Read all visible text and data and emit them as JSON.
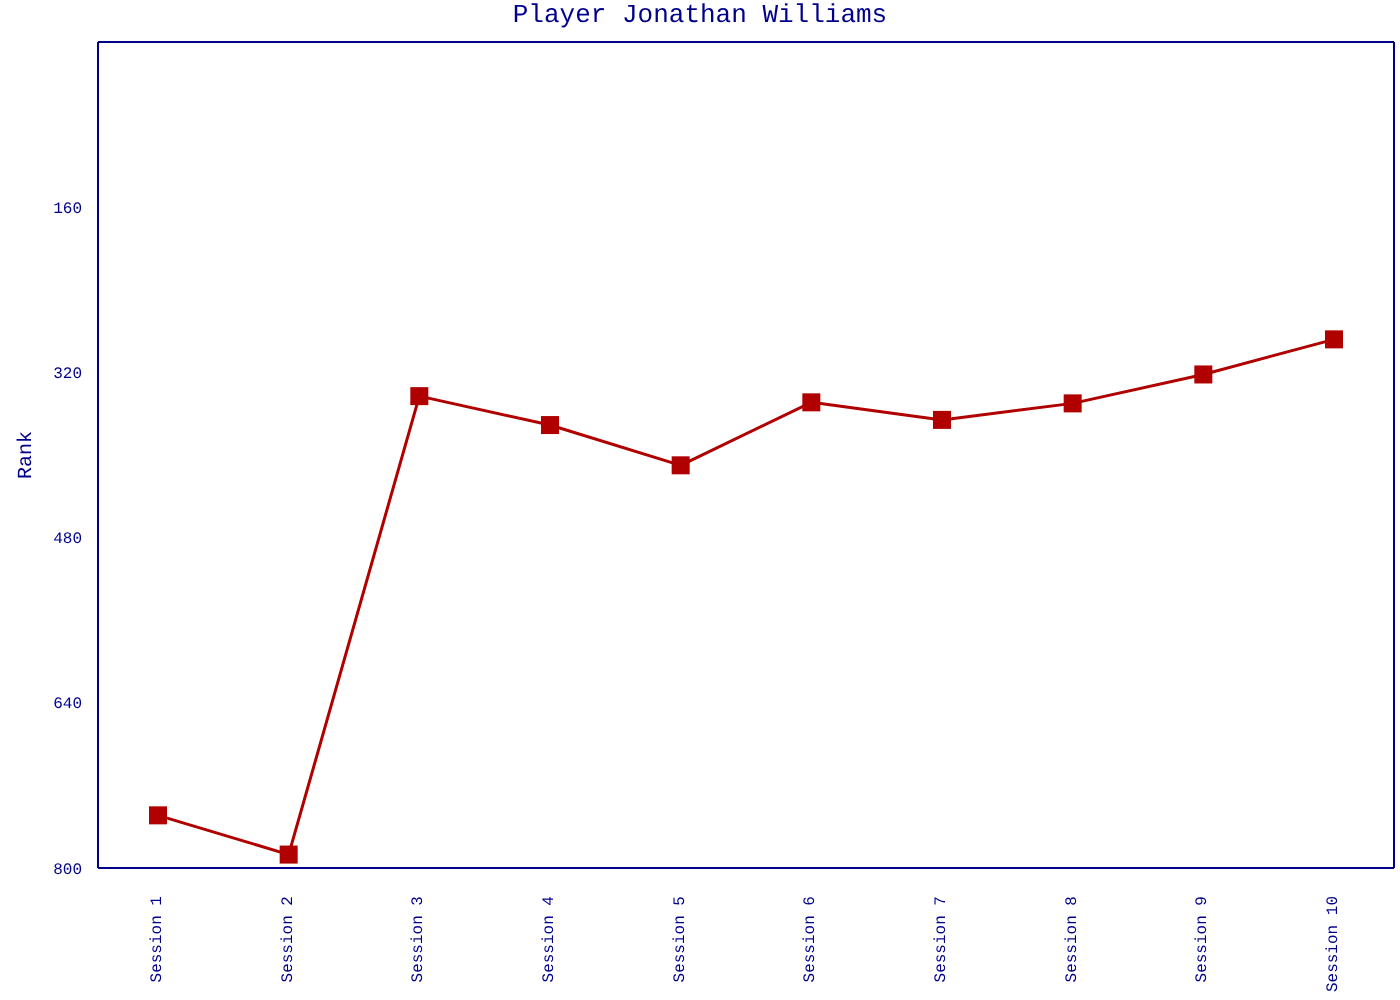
{
  "chart_data": {
    "type": "line",
    "title": "Player Jonathan Williams",
    "ylabel": "Rank",
    "categories": [
      "Session 1",
      "Session 2",
      "Session 3",
      "Session 4",
      "Session 5",
      "Session 6",
      "Session 7",
      "Session 8",
      "Session 9",
      "Session 10"
    ],
    "series": [
      {
        "color": "#b00000",
        "values": [
          749,
          787,
          343,
          371,
          410,
          349,
          366,
          350,
          322,
          288
        ]
      }
    ],
    "ylim": [
      800,
      0
    ],
    "yticks": [
      160,
      320,
      480,
      640,
      800
    ],
    "grid": false,
    "marker": "square",
    "line_style": "solid"
  }
}
